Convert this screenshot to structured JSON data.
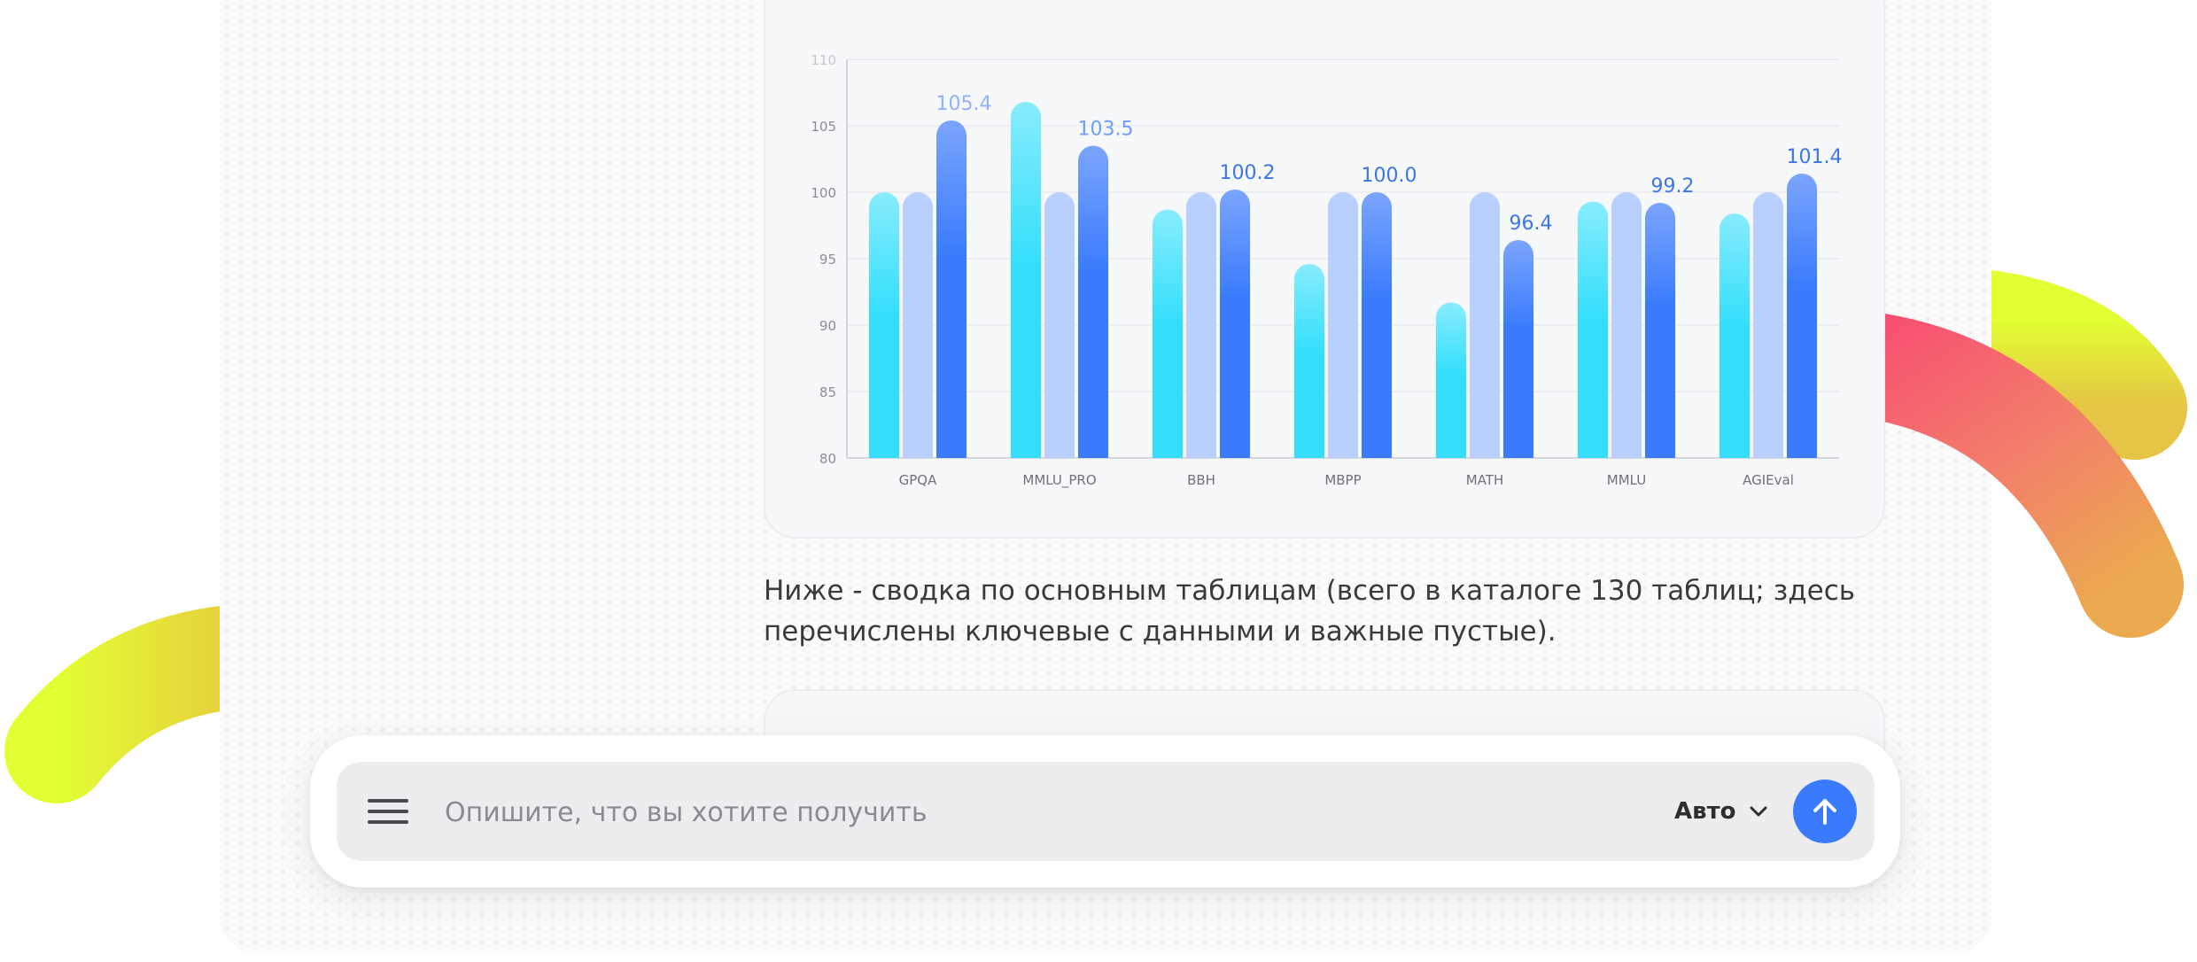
{
  "chart_data": {
    "type": "bar",
    "categories": [
      "GPQA",
      "MMLU_PRO",
      "BBH",
      "MBPP",
      "MATH",
      "MMLU",
      "AGIEval"
    ],
    "series": [
      {
        "values": [
          100.0,
          106.8,
          98.7,
          94.6,
          91.7,
          99.3,
          98.4
        ]
      },
      {
        "values": [
          100.0,
          100.0,
          100.0,
          100.0,
          100.0,
          100.0,
          100.0
        ]
      },
      {
        "values": [
          105.4,
          103.5,
          100.2,
          100.0,
          96.4,
          99.2,
          101.4
        ]
      }
    ],
    "data_labels": [
      "105.4",
      "103.5",
      "100.2",
      "100.0",
      "96.4",
      "99.2",
      "101.4"
    ],
    "y_ticks": [
      "80",
      "85",
      "90",
      "95",
      "100",
      "105",
      "110"
    ],
    "ylim": [
      80,
      110
    ],
    "grid": true,
    "colors": [
      "#35dffc",
      "#b9cffc",
      "#3a7bfd"
    ],
    "title": "",
    "xlabel": "",
    "ylabel": ""
  },
  "summary_text": "Ниже - сводка по основным таблицам (всего в каталоге 130 таблиц; здесь перечислены ключевые с данными и важные пустые).",
  "composer": {
    "menu_icon": "hamburger-icon",
    "placeholder": "Опишите, что вы хотите получить",
    "value": "",
    "mode_label": "Авто",
    "mode_icon": "chevron-down-icon",
    "send_icon": "arrow-up-icon",
    "send_color": "#3a7bfd"
  }
}
